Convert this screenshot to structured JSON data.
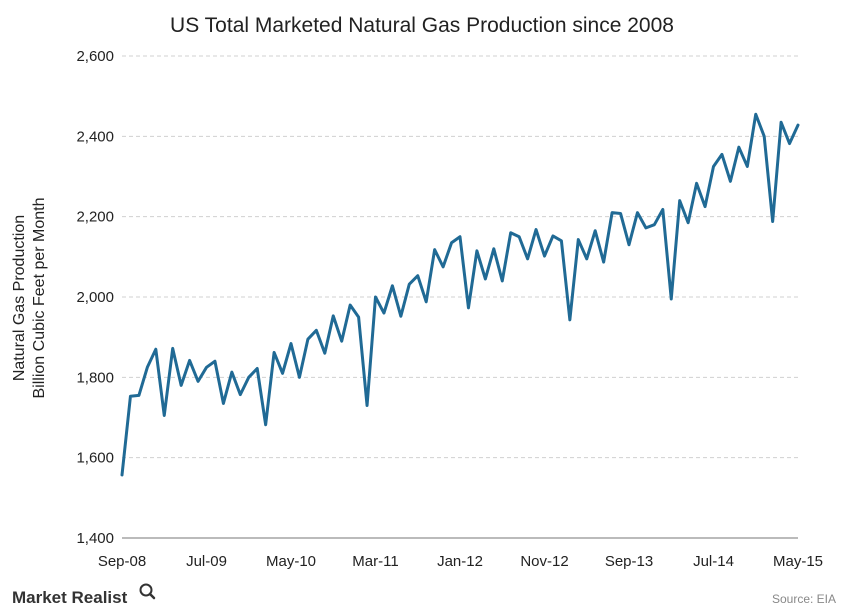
{
  "chart_data": {
    "type": "line",
    "title": "US Total Marketed Natural Gas Production since 2008",
    "ylabel_lines": [
      "Natural Gas Production",
      "Billion Cubic Feet per Month"
    ],
    "xlabel": "",
    "ylim": [
      1400,
      2600
    ],
    "yticks": [
      {
        "value": 1400,
        "label": "1,400"
      },
      {
        "value": 1600,
        "label": "1,600"
      },
      {
        "value": 1800,
        "label": "1,800"
      },
      {
        "value": 2000,
        "label": "2,000"
      },
      {
        "value": 2200,
        "label": "2,200"
      },
      {
        "value": 2400,
        "label": "2,400"
      },
      {
        "value": 2600,
        "label": "2,600"
      }
    ],
    "xticks": [
      {
        "index": 0,
        "label": "Sep-08"
      },
      {
        "index": 10,
        "label": "Jul-09"
      },
      {
        "index": 20,
        "label": "May-10"
      },
      {
        "index": 30,
        "label": "Mar-11"
      },
      {
        "index": 40,
        "label": "Jan-12"
      },
      {
        "index": 50,
        "label": "Nov-12"
      },
      {
        "index": 60,
        "label": "Sep-13"
      },
      {
        "index": 70,
        "label": "Jul-14"
      },
      {
        "index": 80,
        "label": "May-15"
      }
    ],
    "grid": true,
    "series": [
      {
        "color": "#206a95",
        "values": [
          1557,
          1753,
          1755,
          1825,
          1870,
          1705,
          1872,
          1780,
          1842,
          1790,
          1825,
          1840,
          1735,
          1813,
          1757,
          1800,
          1822,
          1682,
          1862,
          1810,
          1884,
          1800,
          1895,
          1917,
          1860,
          1953,
          1890,
          1980,
          1950,
          1730,
          2000,
          1960,
          2028,
          1952,
          2032,
          2053,
          1988,
          2118,
          2075,
          2135,
          2150,
          1973,
          2115,
          2045,
          2120,
          2040,
          2160,
          2150,
          2095,
          2168,
          2102,
          2152,
          2140,
          1943,
          2143,
          2095,
          2165,
          2087,
          2210,
          2208,
          2130,
          2210,
          2172,
          2180,
          2218,
          1995,
          2240,
          2185,
          2283,
          2225,
          2325,
          2355,
          2288,
          2373,
          2325,
          2455,
          2400,
          2188,
          2435,
          2382,
          2428
        ]
      }
    ]
  },
  "brand": {
    "name": "Market Realist"
  },
  "source": {
    "text": "Source:  EIA"
  }
}
